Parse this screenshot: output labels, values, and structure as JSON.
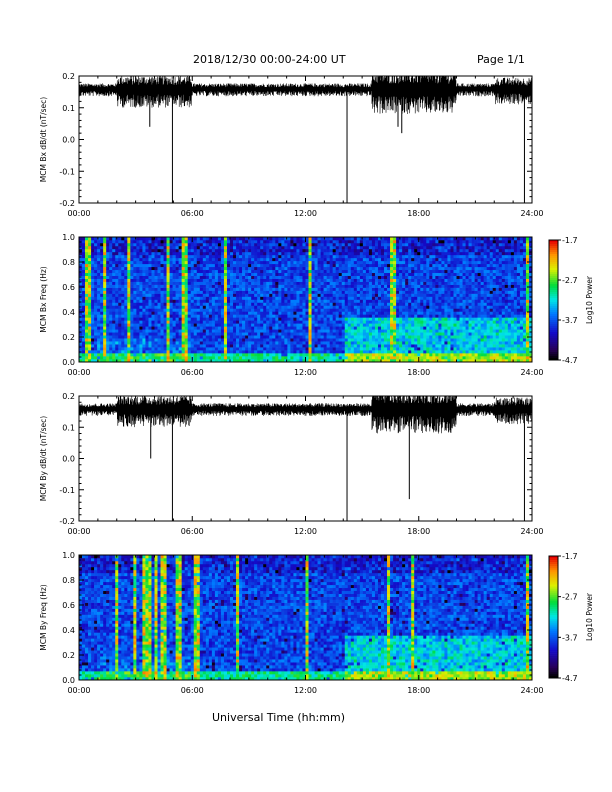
{
  "header": {
    "title": "2018/12/30  00:00-24:00 UT",
    "page": "Page 1/1"
  },
  "xlabel": "Universal Time (hh:mm)",
  "chart_data": [
    {
      "type": "line",
      "ylabel": "MCM Bx dB/dt (nT/sec)",
      "xlim": [
        0,
        24
      ],
      "ylim": [
        -0.2,
        0.2
      ],
      "x_ticks": [
        "00:00",
        "06:00",
        "12:00",
        "18:00",
        "24:00"
      ],
      "y_ticks": [
        "-0.2",
        "-0.1",
        "0.0",
        "0.1",
        "0.2"
      ],
      "baseline": 0.16,
      "series_color": "#000000",
      "spikes": [
        {
          "x": 3.75,
          "y": 0.04
        },
        {
          "x": 4.95,
          "y": -0.2
        },
        {
          "x": 14.2,
          "y": -0.2
        },
        {
          "x": 16.9,
          "y": 0.04
        },
        {
          "x": 17.1,
          "y": 0.02
        },
        {
          "x": 23.6,
          "y": -0.2
        }
      ]
    },
    {
      "type": "heatmap",
      "ylabel": "MCM Bx Freq (Hz)",
      "xlim": [
        0,
        24
      ],
      "ylim": [
        0.0,
        1.0
      ],
      "x_ticks": [
        "00:00",
        "06:00",
        "12:00",
        "18:00",
        "24:00"
      ],
      "y_ticks": [
        "0.0",
        "0.2",
        "0.4",
        "0.6",
        "0.8",
        "1.0"
      ],
      "colorbar": {
        "label": "Log10 Power",
        "ticks": [
          "-1.7",
          "-2.7",
          "-3.7",
          "-4.7"
        ],
        "range": [
          -4.7,
          -1.7
        ]
      },
      "bright_columns_x": [
        0.5,
        1.4,
        2.6,
        4.7,
        5.6,
        7.8,
        12.2,
        16.6,
        23.8
      ]
    },
    {
      "type": "line",
      "ylabel": "MCM By dB/dt (nT/sec)",
      "xlim": [
        0,
        24
      ],
      "ylim": [
        -0.2,
        0.2
      ],
      "x_ticks": [
        "00:00",
        "06:00",
        "12:00",
        "18:00",
        "24:00"
      ],
      "y_ticks": [
        "-0.2",
        "-0.1",
        "0.0",
        "0.1",
        "0.2"
      ],
      "baseline": 0.16,
      "series_color": "#000000",
      "spikes": [
        {
          "x": 3.8,
          "y": 0.0
        },
        {
          "x": 4.95,
          "y": -0.2
        },
        {
          "x": 14.2,
          "y": -0.2
        },
        {
          "x": 17.5,
          "y": -0.13
        },
        {
          "x": 23.6,
          "y": -0.2
        }
      ]
    },
    {
      "type": "heatmap",
      "ylabel": "MCM By Freq (Hz)",
      "xlim": [
        0,
        24
      ],
      "ylim": [
        0.0,
        1.0
      ],
      "x_ticks": [
        "00:00",
        "06:00",
        "12:00",
        "18:00",
        "24:00"
      ],
      "y_ticks": [
        "0.0",
        "0.2",
        "0.4",
        "0.6",
        "0.8",
        "1.0"
      ],
      "colorbar": {
        "label": "Log10 Power",
        "ticks": [
          "-1.7",
          "-2.7",
          "-3.7",
          "-4.7"
        ],
        "range": [
          -4.7,
          -1.7
        ]
      },
      "bright_columns_x": [
        2.0,
        3.0,
        3.4,
        3.7,
        4.1,
        4.5,
        5.3,
        6.2,
        8.4,
        12.1,
        16.4,
        17.7,
        23.8
      ]
    }
  ]
}
